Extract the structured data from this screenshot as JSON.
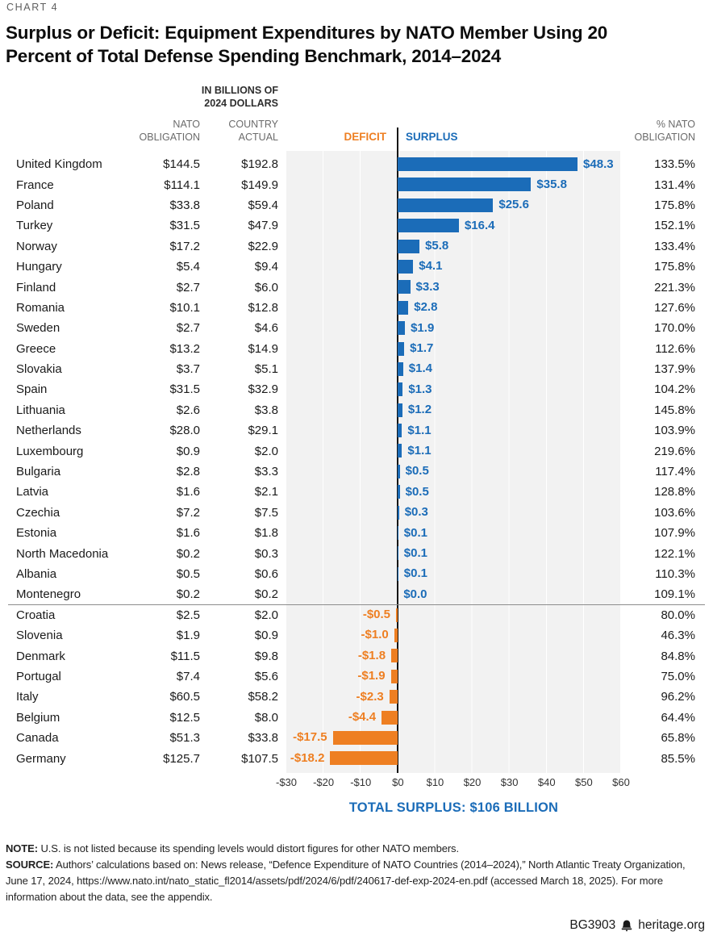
{
  "chart_label": "CHART 4",
  "title": "Surplus or Deficit: Equipment Expenditures by NATO Member Using 20 Percent of Total Defense Spending Benchmark, 2014–2024",
  "headers": {
    "units": "IN BILLIONS OF 2024 DOLLARS",
    "units_line1": "IN BILLIONS OF",
    "units_line2": "2024 DOLLARS",
    "obligation_line1": "NATO",
    "obligation_line2": "OBLIGATION",
    "actual_line1": "COUNTRY",
    "actual_line2": "ACTUAL",
    "deficit": "DEFICIT",
    "surplus": "SURPLUS",
    "pct_line1": "% NATO",
    "pct_line2": "OBLIGATION"
  },
  "colors": {
    "surplus_blue": "#1B6CB8",
    "deficit_orange": "#EE7F22"
  },
  "chart_data": {
    "type": "bar",
    "orientation": "horizontal",
    "title": "Surplus or Deficit: Equipment Expenditures by NATO Member Using 20 Percent of Total Defense Spending Benchmark, 2014–2024",
    "units": "In billions of 2024 dollars",
    "xlim": [
      -30,
      60
    ],
    "grid": true,
    "x_ticks": [
      "-$30",
      "-$20",
      "-$10",
      "$0",
      "$10",
      "$20",
      "$30",
      "$40",
      "$50",
      "$60"
    ],
    "x_tick_values": [
      -30,
      -20,
      -10,
      0,
      10,
      20,
      30,
      40,
      50,
      60
    ],
    "rows": [
      {
        "country": "United Kingdom",
        "obligation": "$144.5",
        "actual": "$192.8",
        "value": 48.3,
        "label": "$48.3",
        "pct": "133.5%"
      },
      {
        "country": "France",
        "obligation": "$114.1",
        "actual": "$149.9",
        "value": 35.8,
        "label": "$35.8",
        "pct": "131.4%"
      },
      {
        "country": "Poland",
        "obligation": "$33.8",
        "actual": "$59.4",
        "value": 25.6,
        "label": "$25.6",
        "pct": "175.8%"
      },
      {
        "country": "Turkey",
        "obligation": "$31.5",
        "actual": "$47.9",
        "value": 16.4,
        "label": "$16.4",
        "pct": "152.1%"
      },
      {
        "country": "Norway",
        "obligation": "$17.2",
        "actual": "$22.9",
        "value": 5.8,
        "label": "$5.8",
        "pct": "133.4%"
      },
      {
        "country": "Hungary",
        "obligation": "$5.4",
        "actual": "$9.4",
        "value": 4.1,
        "label": "$4.1",
        "pct": "175.8%"
      },
      {
        "country": "Finland",
        "obligation": "$2.7",
        "actual": "$6.0",
        "value": 3.3,
        "label": "$3.3",
        "pct": "221.3%"
      },
      {
        "country": "Romania",
        "obligation": "$10.1",
        "actual": "$12.8",
        "value": 2.8,
        "label": "$2.8",
        "pct": "127.6%"
      },
      {
        "country": "Sweden",
        "obligation": "$2.7",
        "actual": "$4.6",
        "value": 1.9,
        "label": "$1.9",
        "pct": "170.0%"
      },
      {
        "country": "Greece",
        "obligation": "$13.2",
        "actual": "$14.9",
        "value": 1.7,
        "label": "$1.7",
        "pct": "112.6%"
      },
      {
        "country": "Slovakia",
        "obligation": "$3.7",
        "actual": "$5.1",
        "value": 1.4,
        "label": "$1.4",
        "pct": "137.9%"
      },
      {
        "country": "Spain",
        "obligation": "$31.5",
        "actual": "$32.9",
        "value": 1.3,
        "label": "$1.3",
        "pct": "104.2%"
      },
      {
        "country": "Lithuania",
        "obligation": "$2.6",
        "actual": "$3.8",
        "value": 1.2,
        "label": "$1.2",
        "pct": "145.8%"
      },
      {
        "country": "Netherlands",
        "obligation": "$28.0",
        "actual": "$29.1",
        "value": 1.1,
        "label": "$1.1",
        "pct": "103.9%"
      },
      {
        "country": "Luxembourg",
        "obligation": "$0.9",
        "actual": "$2.0",
        "value": 1.1,
        "label": "$1.1",
        "pct": "219.6%"
      },
      {
        "country": "Bulgaria",
        "obligation": "$2.8",
        "actual": "$3.3",
        "value": 0.5,
        "label": "$0.5",
        "pct": "117.4%"
      },
      {
        "country": "Latvia",
        "obligation": "$1.6",
        "actual": "$2.1",
        "value": 0.5,
        "label": "$0.5",
        "pct": "128.8%"
      },
      {
        "country": "Czechia",
        "obligation": "$7.2",
        "actual": "$7.5",
        "value": 0.3,
        "label": "$0.3",
        "pct": "103.6%"
      },
      {
        "country": "Estonia",
        "obligation": "$1.6",
        "actual": "$1.8",
        "value": 0.1,
        "label": "$0.1",
        "pct": "107.9%"
      },
      {
        "country": "North Macedonia",
        "obligation": "$0.2",
        "actual": "$0.3",
        "value": 0.1,
        "label": "$0.1",
        "pct": "122.1%"
      },
      {
        "country": "Albania",
        "obligation": "$0.5",
        "actual": "$0.6",
        "value": 0.1,
        "label": "$0.1",
        "pct": "110.3%"
      },
      {
        "country": "Montenegro",
        "obligation": "$0.2",
        "actual": "$0.2",
        "value": 0.0,
        "label": "$0.0",
        "pct": "109.1%"
      },
      {
        "country": "Croatia",
        "obligation": "$2.5",
        "actual": "$2.0",
        "value": -0.5,
        "label": "-$0.5",
        "pct": "80.0%"
      },
      {
        "country": "Slovenia",
        "obligation": "$1.9",
        "actual": "$0.9",
        "value": -1.0,
        "label": "-$1.0",
        "pct": "46.3%"
      },
      {
        "country": "Denmark",
        "obligation": "$11.5",
        "actual": "$9.8",
        "value": -1.8,
        "label": "-$1.8",
        "pct": "84.8%"
      },
      {
        "country": "Portugal",
        "obligation": "$7.4",
        "actual": "$5.6",
        "value": -1.9,
        "label": "-$1.9",
        "pct": "75.0%"
      },
      {
        "country": "Italy",
        "obligation": "$60.5",
        "actual": "$58.2",
        "value": -2.3,
        "label": "-$2.3",
        "pct": "96.2%"
      },
      {
        "country": "Belgium",
        "obligation": "$12.5",
        "actual": "$8.0",
        "value": -4.4,
        "label": "-$4.4",
        "pct": "64.4%"
      },
      {
        "country": "Canada",
        "obligation": "$51.3",
        "actual": "$33.8",
        "value": -17.5,
        "label": "-$17.5",
        "pct": "65.8%"
      },
      {
        "country": "Germany",
        "obligation": "$125.7",
        "actual": "$107.5",
        "value": -18.2,
        "label": "-$18.2",
        "pct": "85.5%"
      }
    ]
  },
  "total_line": "TOTAL SURPLUS: $106 BILLION",
  "notes": {
    "note_label": "NOTE:",
    "note_text": " U.S. is not listed because its spending levels would distort figures for other NATO members.",
    "source_label": "SOURCE:",
    "source_text": " Authors’ calculations based on: News release, “Defence Expenditure of NATO Countries (2014–2024),” North Atlantic Treaty Organization, June 17, 2024, https://www.nato.int/nato_static_fl2014/assets/pdf/2024/6/pdf/240617-def-exp-2024-en.pdf (accessed March 18, 2025). For more information about the data, see the appendix."
  },
  "footer": {
    "report_id": "BG3903",
    "site": "heritage.org",
    "logo": "liberty-bell-icon"
  }
}
